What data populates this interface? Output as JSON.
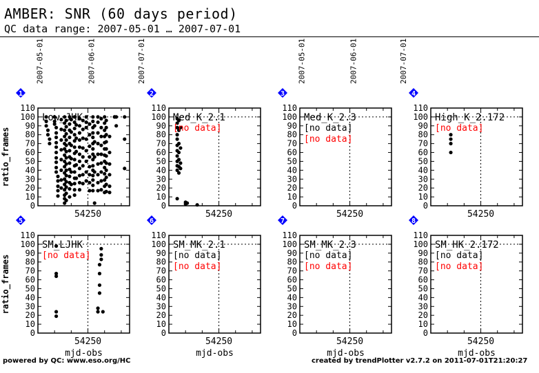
{
  "header": {
    "title": "AMBER: SNR (60 days period)",
    "subtitle": "QC data range: 2007-05-01 … 2007-07-01"
  },
  "footer": {
    "left": "powered by QC: www.eso.org/HC",
    "right": "created by trendPlotter v2.7.2 on 2011-07-01T21:20:27"
  },
  "colors": {
    "no_data": "#ff0000",
    "badge": "#0000ff",
    "ink": "#000000"
  },
  "chart_data": [
    {
      "type": "scatter",
      "index": "1",
      "label": "Low_JHK",
      "xlabel": "",
      "ylabel": "ratio_frames",
      "ylim": [
        0,
        110
      ],
      "x_ticks": [
        54250
      ],
      "date_ticks": [
        "2007-05-01",
        "2007-06-01",
        "2007-07-01"
      ],
      "no_data": [],
      "points": [
        [
          54225,
          100
        ],
        [
          54225,
          95
        ],
        [
          54225,
          90
        ],
        [
          54226,
          85
        ],
        [
          54226,
          80
        ],
        [
          54227,
          75
        ],
        [
          54227,
          70
        ],
        [
          54230,
          100
        ],
        [
          54230,
          95
        ],
        [
          54230,
          92
        ],
        [
          54231,
          88
        ],
        [
          54231,
          82
        ],
        [
          54231,
          77
        ],
        [
          54231,
          71
        ],
        [
          54231,
          66
        ],
        [
          54231,
          60
        ],
        [
          54231,
          54
        ],
        [
          54231,
          49
        ],
        [
          54231,
          43
        ],
        [
          54231,
          38
        ],
        [
          54232,
          33
        ],
        [
          54232,
          28
        ],
        [
          54232,
          22
        ],
        [
          54232,
          17
        ],
        [
          54232,
          11
        ],
        [
          54234,
          97
        ],
        [
          54234,
          86
        ],
        [
          54234,
          74
        ],
        [
          54234,
          63
        ],
        [
          54234,
          52
        ],
        [
          54234,
          40
        ],
        [
          54234,
          29
        ],
        [
          54234,
          20
        ],
        [
          54236,
          100
        ],
        [
          54236,
          93
        ],
        [
          54236,
          85
        ],
        [
          54236,
          78
        ],
        [
          54236,
          70
        ],
        [
          54236,
          64
        ],
        [
          54236,
          57
        ],
        [
          54236,
          50
        ],
        [
          54236,
          44
        ],
        [
          54236,
          37
        ],
        [
          54236,
          30
        ],
        [
          54236,
          24
        ],
        [
          54236,
          18
        ],
        [
          54236,
          12
        ],
        [
          54236,
          8
        ],
        [
          54236,
          3
        ],
        [
          54237,
          96
        ],
        [
          54237,
          89
        ],
        [
          54237,
          81
        ],
        [
          54237,
          74
        ],
        [
          54237,
          68
        ],
        [
          54237,
          61
        ],
        [
          54237,
          54
        ],
        [
          54237,
          47
        ],
        [
          54237,
          40
        ],
        [
          54237,
          34
        ],
        [
          54237,
          27
        ],
        [
          54237,
          21
        ],
        [
          54237,
          14
        ],
        [
          54237,
          6
        ],
        [
          54239,
          100
        ],
        [
          54239,
          92
        ],
        [
          54239,
          85
        ],
        [
          54239,
          77
        ],
        [
          54239,
          70
        ],
        [
          54239,
          62
        ],
        [
          54239,
          55
        ],
        [
          54239,
          48
        ],
        [
          54239,
          41
        ],
        [
          54239,
          33
        ],
        [
          54239,
          26
        ],
        [
          54239,
          19
        ],
        [
          54239,
          10
        ],
        [
          54240,
          97
        ],
        [
          54240,
          83
        ],
        [
          54240,
          68
        ],
        [
          54240,
          53
        ],
        [
          54240,
          38
        ],
        [
          54240,
          24
        ],
        [
          54242,
          100
        ],
        [
          54242,
          94
        ],
        [
          54242,
          87
        ],
        [
          54242,
          80
        ],
        [
          54242,
          73
        ],
        [
          54242,
          66
        ],
        [
          54242,
          59
        ],
        [
          54242,
          52
        ],
        [
          54242,
          45
        ],
        [
          54242,
          38
        ],
        [
          54242,
          31
        ],
        [
          54242,
          25
        ],
        [
          54242,
          18
        ],
        [
          54242,
          12
        ],
        [
          54243,
          91
        ],
        [
          54243,
          76
        ],
        [
          54243,
          61
        ],
        [
          54243,
          46
        ],
        [
          54243,
          31
        ],
        [
          54245,
          98
        ],
        [
          54245,
          90
        ],
        [
          54245,
          82
        ],
        [
          54245,
          74
        ],
        [
          54245,
          66
        ],
        [
          54245,
          58
        ],
        [
          54245,
          50
        ],
        [
          54245,
          42
        ],
        [
          54245,
          34
        ],
        [
          54245,
          26
        ],
        [
          54245,
          18
        ],
        [
          54247,
          96
        ],
        [
          54247,
          86
        ],
        [
          54247,
          76
        ],
        [
          54247,
          65
        ],
        [
          54247,
          55
        ],
        [
          54247,
          45
        ],
        [
          54247,
          35
        ],
        [
          54247,
          25
        ],
        [
          54249,
          100
        ],
        [
          54249,
          94
        ],
        [
          54249,
          88
        ],
        [
          54249,
          75
        ],
        [
          54249,
          62
        ],
        [
          54249,
          50
        ],
        [
          54249,
          38
        ],
        [
          54249,
          28
        ],
        [
          54251,
          92
        ],
        [
          54251,
          80
        ],
        [
          54251,
          67
        ],
        [
          54251,
          55
        ],
        [
          54251,
          44
        ],
        [
          54251,
          35
        ],
        [
          54251,
          26
        ],
        [
          54251,
          17
        ],
        [
          54253,
          100
        ],
        [
          54253,
          95
        ],
        [
          54253,
          88
        ],
        [
          54253,
          82
        ],
        [
          54253,
          77
        ],
        [
          54253,
          70
        ],
        [
          54253,
          64
        ],
        [
          54253,
          58
        ],
        [
          54253,
          52
        ],
        [
          54253,
          45
        ],
        [
          54253,
          40
        ],
        [
          54253,
          34
        ],
        [
          54253,
          29
        ],
        [
          54253,
          23
        ],
        [
          54253,
          17
        ],
        [
          54254,
          90
        ],
        [
          54254,
          72
        ],
        [
          54254,
          55
        ],
        [
          54254,
          38
        ],
        [
          54254,
          3
        ],
        [
          54256,
          100
        ],
        [
          54256,
          94
        ],
        [
          54256,
          82
        ],
        [
          54256,
          70
        ],
        [
          54256,
          58
        ],
        [
          54256,
          47
        ],
        [
          54256,
          35
        ],
        [
          54256,
          26
        ],
        [
          54256,
          17
        ],
        [
          54258,
          98
        ],
        [
          54258,
          88
        ],
        [
          54258,
          78
        ],
        [
          54258,
          68
        ],
        [
          54258,
          58
        ],
        [
          54258,
          48
        ],
        [
          54258,
          38
        ],
        [
          54258,
          28
        ],
        [
          54258,
          18
        ],
        [
          54260,
          100
        ],
        [
          54260,
          93
        ],
        [
          54260,
          85
        ],
        [
          54260,
          78
        ],
        [
          54260,
          71
        ],
        [
          54260,
          64
        ],
        [
          54260,
          57
        ],
        [
          54260,
          50
        ],
        [
          54260,
          43
        ],
        [
          54260,
          36
        ],
        [
          54260,
          29
        ],
        [
          54260,
          22
        ],
        [
          54260,
          15
        ],
        [
          54261,
          96
        ],
        [
          54261,
          88
        ],
        [
          54261,
          80
        ],
        [
          54261,
          72
        ],
        [
          54261,
          64
        ],
        [
          54261,
          56
        ],
        [
          54261,
          48
        ],
        [
          54261,
          40
        ],
        [
          54261,
          32
        ],
        [
          54261,
          24
        ],
        [
          54261,
          16
        ],
        [
          54263,
          78
        ],
        [
          54263,
          60
        ],
        [
          54263,
          47
        ],
        [
          54263,
          35
        ],
        [
          54263,
          22
        ],
        [
          54263,
          15
        ],
        [
          54266,
          100
        ],
        [
          54266,
          100
        ],
        [
          54267,
          100
        ],
        [
          54267,
          90
        ],
        [
          54272,
          100
        ],
        [
          54272,
          75
        ],
        [
          54272,
          42
        ]
      ]
    },
    {
      "type": "scatter",
      "index": "2",
      "label": "Med_K_2.1",
      "xlabel": "",
      "ylabel": "",
      "ylim": [
        0,
        110
      ],
      "x_ticks": [
        54250
      ],
      "date_ticks": [],
      "no_data": [
        "[no data]"
      ],
      "points": [
        [
          54225,
          98
        ],
        [
          54225,
          93
        ],
        [
          54225,
          88
        ],
        [
          54225,
          80
        ],
        [
          54225,
          75
        ],
        [
          54225,
          68
        ],
        [
          54225,
          62
        ],
        [
          54225,
          56
        ],
        [
          54225,
          50
        ],
        [
          54225,
          45
        ],
        [
          54225,
          40
        ],
        [
          54225,
          8
        ],
        [
          54226,
          96
        ],
        [
          54226,
          85
        ],
        [
          54226,
          70
        ],
        [
          54226,
          60
        ],
        [
          54226,
          52
        ],
        [
          54226,
          44
        ],
        [
          54226,
          37
        ],
        [
          54227,
          88
        ],
        [
          54227,
          65
        ],
        [
          54227,
          48
        ],
        [
          54227,
          42
        ],
        [
          54230,
          4
        ],
        [
          54230,
          2
        ],
        [
          54231,
          3
        ],
        [
          54237,
          1
        ]
      ]
    },
    {
      "type": "scatter",
      "index": "3",
      "label": "Med_K_2.3",
      "xlabel": "",
      "ylabel": "",
      "ylim": [
        0,
        110
      ],
      "x_ticks": [
        54250
      ],
      "date_ticks": [
        "2007-05-01",
        "2007-06-01",
        "2007-07-01"
      ],
      "no_data": [
        "[no data]",
        "[no data]"
      ],
      "points": []
    },
    {
      "type": "scatter",
      "index": "4",
      "label": "High_K_2.172",
      "xlabel": "",
      "ylabel": "",
      "ylim": [
        0,
        110
      ],
      "x_ticks": [
        54250
      ],
      "date_ticks": [],
      "no_data": [
        "[no data]"
      ],
      "points": [
        [
          54232,
          80
        ],
        [
          54232,
          75
        ],
        [
          54232,
          70
        ],
        [
          54232,
          60
        ]
      ]
    },
    {
      "type": "scatter",
      "index": "5",
      "label": "SM_LJHK",
      "xlabel": "mjd-obs",
      "ylabel": "ratio_frames",
      "ylim": [
        0,
        110
      ],
      "x_ticks": [
        54250
      ],
      "date_ticks": [],
      "no_data": [
        "[no data]"
      ],
      "points": [
        [
          54231,
          98
        ],
        [
          54231,
          67
        ],
        [
          54231,
          64
        ],
        [
          54231,
          24
        ],
        [
          54231,
          19
        ],
        [
          54258,
          95
        ],
        [
          54258,
          88
        ],
        [
          54258,
          83
        ],
        [
          54257,
          77
        ],
        [
          54257,
          67
        ],
        [
          54257,
          54
        ],
        [
          54257,
          45
        ],
        [
          54256,
          28
        ],
        [
          54256,
          24
        ],
        [
          54259,
          24
        ]
      ]
    },
    {
      "type": "scatter",
      "index": "6",
      "label": "SM_MK_2.1",
      "xlabel": "mjd-obs",
      "ylabel": "",
      "ylim": [
        0,
        110
      ],
      "x_ticks": [
        54250
      ],
      "date_ticks": [],
      "no_data": [
        "[no data]",
        "[no data]"
      ],
      "points": []
    },
    {
      "type": "scatter",
      "index": "7",
      "label": "SM_MK_2.3",
      "xlabel": "mjd-obs",
      "ylabel": "",
      "ylim": [
        0,
        110
      ],
      "x_ticks": [
        54250
      ],
      "date_ticks": [],
      "no_data": [
        "[no data]",
        "[no data]"
      ],
      "points": []
    },
    {
      "type": "scatter",
      "index": "8",
      "label": "SM_HK_2.172",
      "xlabel": "mjd-obs",
      "ylabel": "",
      "ylim": [
        0,
        110
      ],
      "x_ticks": [
        54250
      ],
      "date_ticks": [],
      "no_data": [
        "[no data]",
        "[no data]"
      ],
      "points": []
    }
  ]
}
